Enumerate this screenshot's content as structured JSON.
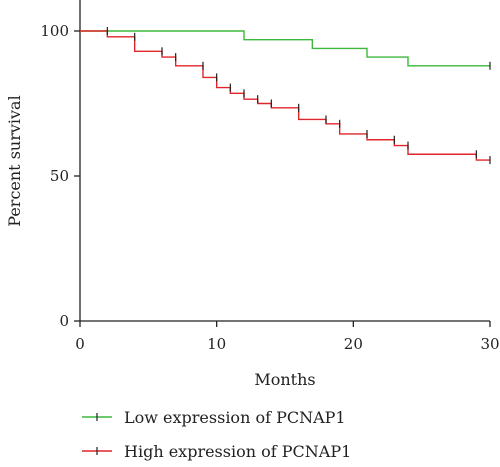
{
  "chart_data": {
    "type": "line",
    "subtype": "kaplan-meier-step",
    "xlabel": "Months",
    "ylabel": "Percent survival",
    "xlim": [
      0,
      30
    ],
    "ylim": [
      0,
      100
    ],
    "x_ticks": [
      "0",
      "10",
      "20",
      "30"
    ],
    "y_ticks": [
      "0",
      "50",
      "100"
    ],
    "grid": false,
    "legend_position": "bottom-left",
    "series": [
      {
        "name": "Low expression of PCNAP1",
        "color": "#3cb83c",
        "points": [
          [
            0,
            100
          ],
          [
            12,
            100
          ],
          [
            12,
            97
          ],
          [
            17,
            97
          ],
          [
            17,
            94
          ],
          [
            21,
            94
          ],
          [
            21,
            91
          ],
          [
            24,
            91
          ],
          [
            24,
            88
          ],
          [
            30,
            88
          ]
        ],
        "censor_x": [
          30
        ]
      },
      {
        "name": "High expression of PCNAP1",
        "color": "#e0262b",
        "points": [
          [
            0,
            100
          ],
          [
            2,
            100
          ],
          [
            2,
            98
          ],
          [
            4,
            98
          ],
          [
            4,
            93
          ],
          [
            6,
            93
          ],
          [
            6,
            91
          ],
          [
            7,
            91
          ],
          [
            7,
            88
          ],
          [
            9,
            88
          ],
          [
            9,
            84
          ],
          [
            10,
            84
          ],
          [
            10,
            80.5
          ],
          [
            11,
            80.5
          ],
          [
            11,
            78.5
          ],
          [
            12,
            78.5
          ],
          [
            12,
            76.5
          ],
          [
            13,
            76.5
          ],
          [
            13,
            75
          ],
          [
            14,
            75
          ],
          [
            14,
            73.5
          ],
          [
            16,
            73.5
          ],
          [
            16,
            69.5
          ],
          [
            18,
            69.5
          ],
          [
            18,
            68
          ],
          [
            19,
            68
          ],
          [
            19,
            64.5
          ],
          [
            21,
            64.5
          ],
          [
            21,
            62.5
          ],
          [
            23,
            62.5
          ],
          [
            23,
            60.5
          ],
          [
            24,
            60.5
          ],
          [
            24,
            57.5
          ],
          [
            29,
            57.5
          ],
          [
            29,
            55.5
          ],
          [
            30,
            55.5
          ]
        ],
        "censor_x": [
          2,
          4,
          6,
          7,
          9,
          10,
          11,
          12,
          13,
          14,
          16,
          18,
          19,
          21,
          23,
          24,
          29,
          30
        ]
      }
    ]
  }
}
